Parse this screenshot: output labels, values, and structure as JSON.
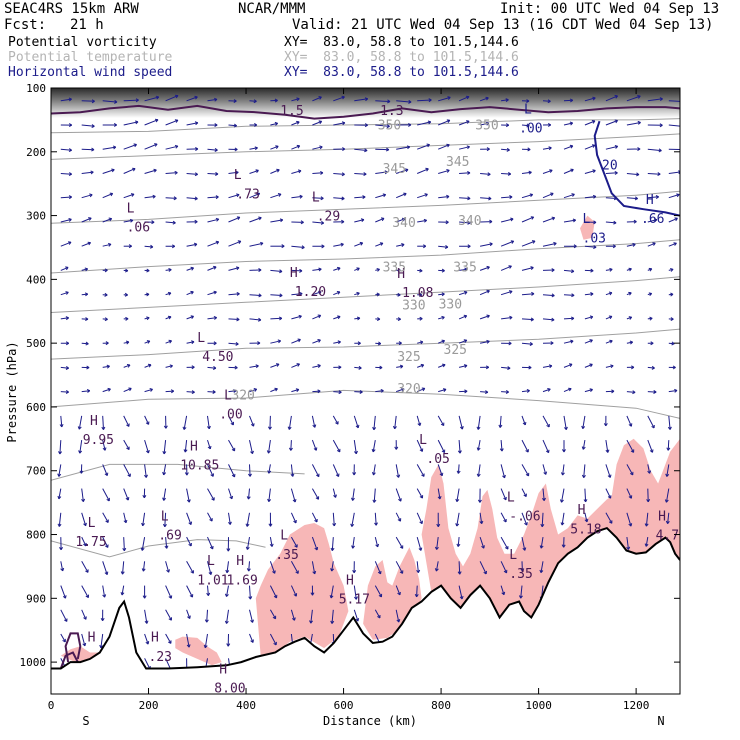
{
  "header": {
    "model": "SEAC4RS 15km ARW",
    "org": "NCAR/MMM",
    "init": "Init: 00 UTC Wed 04 Sep 13",
    "fcst_label": "Fcst:",
    "fcst_value": "21 h",
    "valid": "Valid: 21 UTC Wed 04 Sep 13 (16 CDT Wed 04 Sep 13)",
    "fields": [
      {
        "name": "Potential vorticity",
        "xy": "XY=  83.0, 58.8 to 101.5,144.6",
        "color": "#000000"
      },
      {
        "name": "Potential temperature",
        "xy": "XY=  83.0, 58.8 to 101.5,144.6",
        "color": "#b4b4b4"
      },
      {
        "name": "Horizontal wind speed",
        "xy": "XY=  83.0, 58.8 to 101.5,144.6",
        "color": "#1c1c8a"
      }
    ]
  },
  "colors": {
    "pv_fill": "#f7b7b7",
    "pv_contour": "#4a1a52",
    "theta": "#a0a0a0",
    "wind": "#1c1c8a",
    "terrain": "#000000"
  },
  "chart_data": {
    "type": "cross-section",
    "xlabel": "Distance (km)",
    "ylabel": "Pressure (hPa)",
    "x_ticks": [
      0,
      200,
      400,
      600,
      800,
      1000,
      1200
    ],
    "y_ticks": [
      100,
      200,
      300,
      400,
      500,
      600,
      700,
      800,
      900,
      1000
    ],
    "xlim": [
      0,
      1290
    ],
    "ylim": [
      1050,
      100
    ],
    "endpoints": {
      "left": "S",
      "right": "N"
    },
    "theta_contours": [
      {
        "level": 345,
        "points": [
          [
            0,
            212
          ],
          [
            200,
            206
          ],
          [
            400,
            200
          ],
          [
            600,
            196
          ],
          [
            800,
            190
          ],
          [
            1000,
            184
          ],
          [
            1200,
            176
          ],
          [
            1290,
            172
          ]
        ]
      },
      {
        "level": 340,
        "points": [
          [
            0,
            312
          ],
          [
            200,
            306
          ],
          [
            400,
            296
          ],
          [
            600,
            290
          ],
          [
            800,
            284
          ],
          [
            1000,
            276
          ],
          [
            1200,
            268
          ],
          [
            1290,
            262
          ]
        ]
      },
      {
        "level": 335,
        "points": [
          [
            0,
            390
          ],
          [
            200,
            380
          ],
          [
            400,
            372
          ],
          [
            600,
            368
          ],
          [
            800,
            362
          ],
          [
            1000,
            352
          ],
          [
            1200,
            344
          ],
          [
            1290,
            338
          ]
        ]
      },
      {
        "level": 330,
        "points": [
          [
            0,
            452
          ],
          [
            200,
            444
          ],
          [
            400,
            436
          ],
          [
            600,
            428
          ],
          [
            800,
            420
          ],
          [
            1000,
            412
          ],
          [
            1200,
            402
          ],
          [
            1290,
            396
          ]
        ]
      },
      {
        "level": 325,
        "points": [
          [
            0,
            525
          ],
          [
            200,
            518
          ],
          [
            400,
            508
          ],
          [
            600,
            506
          ],
          [
            800,
            500
          ],
          [
            1000,
            494
          ],
          [
            1200,
            484
          ],
          [
            1290,
            478
          ]
        ]
      },
      {
        "level": 320,
        "points": [
          [
            0,
            600
          ],
          [
            200,
            588
          ],
          [
            400,
            586
          ],
          [
            600,
            574
          ],
          [
            800,
            580
          ],
          [
            1000,
            590
          ],
          [
            1200,
            602
          ],
          [
            1290,
            618
          ]
        ]
      }
    ],
    "theta_labels": [
      {
        "text": "350",
        "x": 670,
        "p": 165
      },
      {
        "text": "350",
        "x": 870,
        "p": 165
      },
      {
        "text": "345",
        "x": 680,
        "p": 233
      },
      {
        "text": "345",
        "x": 810,
        "p": 222
      },
      {
        "text": "340",
        "x": 700,
        "p": 318
      },
      {
        "text": "340",
        "x": 835,
        "p": 315
      },
      {
        "text": "335",
        "x": 680,
        "p": 388
      },
      {
        "text": "335",
        "x": 825,
        "p": 388
      },
      {
        "text": "330",
        "x": 720,
        "p": 447
      },
      {
        "text": "330",
        "x": 795,
        "p": 446
      },
      {
        "text": "325",
        "x": 710,
        "p": 528
      },
      {
        "text": "325",
        "x": 805,
        "p": 517
      },
      {
        "text": "320",
        "x": 370,
        "p": 588
      },
      {
        "text": "320",
        "x": 710,
        "p": 578
      }
    ],
    "extrema_labels": [
      {
        "text": "L",
        "x": 375,
        "p": 243,
        "kind": "pv"
      },
      {
        "text": ".73",
        "x": 380,
        "p": 273,
        "kind": "pv"
      },
      {
        "text": "L",
        "x": 155,
        "p": 295,
        "kind": "pv"
      },
      {
        "text": ".06",
        "x": 155,
        "p": 325,
        "kind": "pv"
      },
      {
        "text": "L",
        "x": 535,
        "p": 278,
        "kind": "pv"
      },
      {
        "text": ".29",
        "x": 545,
        "p": 308,
        "kind": "pv"
      },
      {
        "text": "H",
        "x": 490,
        "p": 396,
        "kind": "pv"
      },
      {
        "text": "1.20",
        "x": 500,
        "p": 426,
        "kind": "pv"
      },
      {
        "text": "H",
        "x": 710,
        "p": 398,
        "kind": "pv"
      },
      {
        "text": "1.08",
        "x": 720,
        "p": 428,
        "kind": "pv"
      },
      {
        "text": "L",
        "x": 300,
        "p": 498,
        "kind": "pv"
      },
      {
        "text": "4.50",
        "x": 310,
        "p": 528,
        "kind": "pv"
      },
      {
        "text": "L",
        "x": 355,
        "p": 588,
        "kind": "pv"
      },
      {
        "text": ".00",
        "x": 345,
        "p": 618,
        "kind": "pv"
      },
      {
        "text": "H",
        "x": 80,
        "p": 628,
        "kind": "pv"
      },
      {
        "text": "9.95",
        "x": 65,
        "p": 658,
        "kind": "pv"
      },
      {
        "text": "H",
        "x": 285,
        "p": 668,
        "kind": "pv"
      },
      {
        "text": "10.85",
        "x": 265,
        "p": 698,
        "kind": "pv"
      },
      {
        "text": "L",
        "x": 755,
        "p": 658,
        "kind": "pv"
      },
      {
        "text": ".05",
        "x": 770,
        "p": 688,
        "kind": "pv"
      },
      {
        "text": "L",
        "x": 935,
        "p": 748,
        "kind": "pv"
      },
      {
        "text": "-.06",
        "x": 940,
        "p": 778,
        "kind": "pv"
      },
      {
        "text": "H",
        "x": 1080,
        "p": 768,
        "kind": "pv"
      },
      {
        "text": "5.18",
        "x": 1065,
        "p": 798,
        "kind": "pv"
      },
      {
        "text": "H",
        "x": 1245,
        "p": 778,
        "kind": "pv"
      },
      {
        "text": "4.7",
        "x": 1240,
        "p": 808,
        "kind": "pv"
      },
      {
        "text": "L",
        "x": 225,
        "p": 778,
        "kind": "pv"
      },
      {
        "text": ".69",
        "x": 220,
        "p": 808,
        "kind": "pv"
      },
      {
        "text": "L",
        "x": 75,
        "p": 788,
        "kind": "pv"
      },
      {
        "text": "1.75",
        "x": 50,
        "p": 818,
        "kind": "pv"
      },
      {
        "text": "L",
        "x": 470,
        "p": 808,
        "kind": "pv"
      },
      {
        "text": ".35",
        "x": 460,
        "p": 838,
        "kind": "pv"
      },
      {
        "text": "L",
        "x": 940,
        "p": 838,
        "kind": "pv"
      },
      {
        "text": ".35",
        "x": 940,
        "p": 868,
        "kind": "pv"
      },
      {
        "text": "L",
        "x": 320,
        "p": 848,
        "kind": "pv"
      },
      {
        "text": "1.01",
        "x": 300,
        "p": 878,
        "kind": "pv"
      },
      {
        "text": "H",
        "x": 380,
        "p": 848,
        "kind": "pv"
      },
      {
        "text": "1.69",
        "x": 360,
        "p": 878,
        "kind": "pv"
      },
      {
        "text": "H",
        "x": 605,
        "p": 878,
        "kind": "pv"
      },
      {
        "text": "5.17",
        "x": 590,
        "p": 908,
        "kind": "pv"
      },
      {
        "text": "H",
        "x": 75,
        "p": 968,
        "kind": "pv"
      },
      {
        "text": "H",
        "x": 205,
        "p": 968,
        "kind": "pv"
      },
      {
        "text": ".23",
        "x": 200,
        "p": 998,
        "kind": "pv"
      },
      {
        "text": "H",
        "x": 345,
        "p": 1018,
        "kind": "pv"
      },
      {
        "text": "8.00",
        "x": 335,
        "p": 1048,
        "kind": "pv"
      },
      {
        "text": "1.5",
        "x": 470,
        "p": 142,
        "kind": "pv"
      },
      {
        "text": "1.3",
        "x": 675,
        "p": 142,
        "kind": "pv"
      },
      {
        "text": "L",
        "x": 970,
        "p": 140,
        "kind": "wind"
      },
      {
        "text": ".00",
        "x": 960,
        "p": 170,
        "kind": "wind"
      },
      {
        "text": "20",
        "x": 1130,
        "p": 228,
        "kind": "wind"
      },
      {
        "text": "H",
        "x": 1220,
        "p": 282,
        "kind": "wind"
      },
      {
        "text": ".66",
        "x": 1210,
        "p": 312,
        "kind": "wind"
      },
      {
        "text": "L",
        "x": 1090,
        "p": 312,
        "kind": "wind"
      },
      {
        "text": ".03",
        "x": 1090,
        "p": 342,
        "kind": "wind"
      }
    ]
  }
}
